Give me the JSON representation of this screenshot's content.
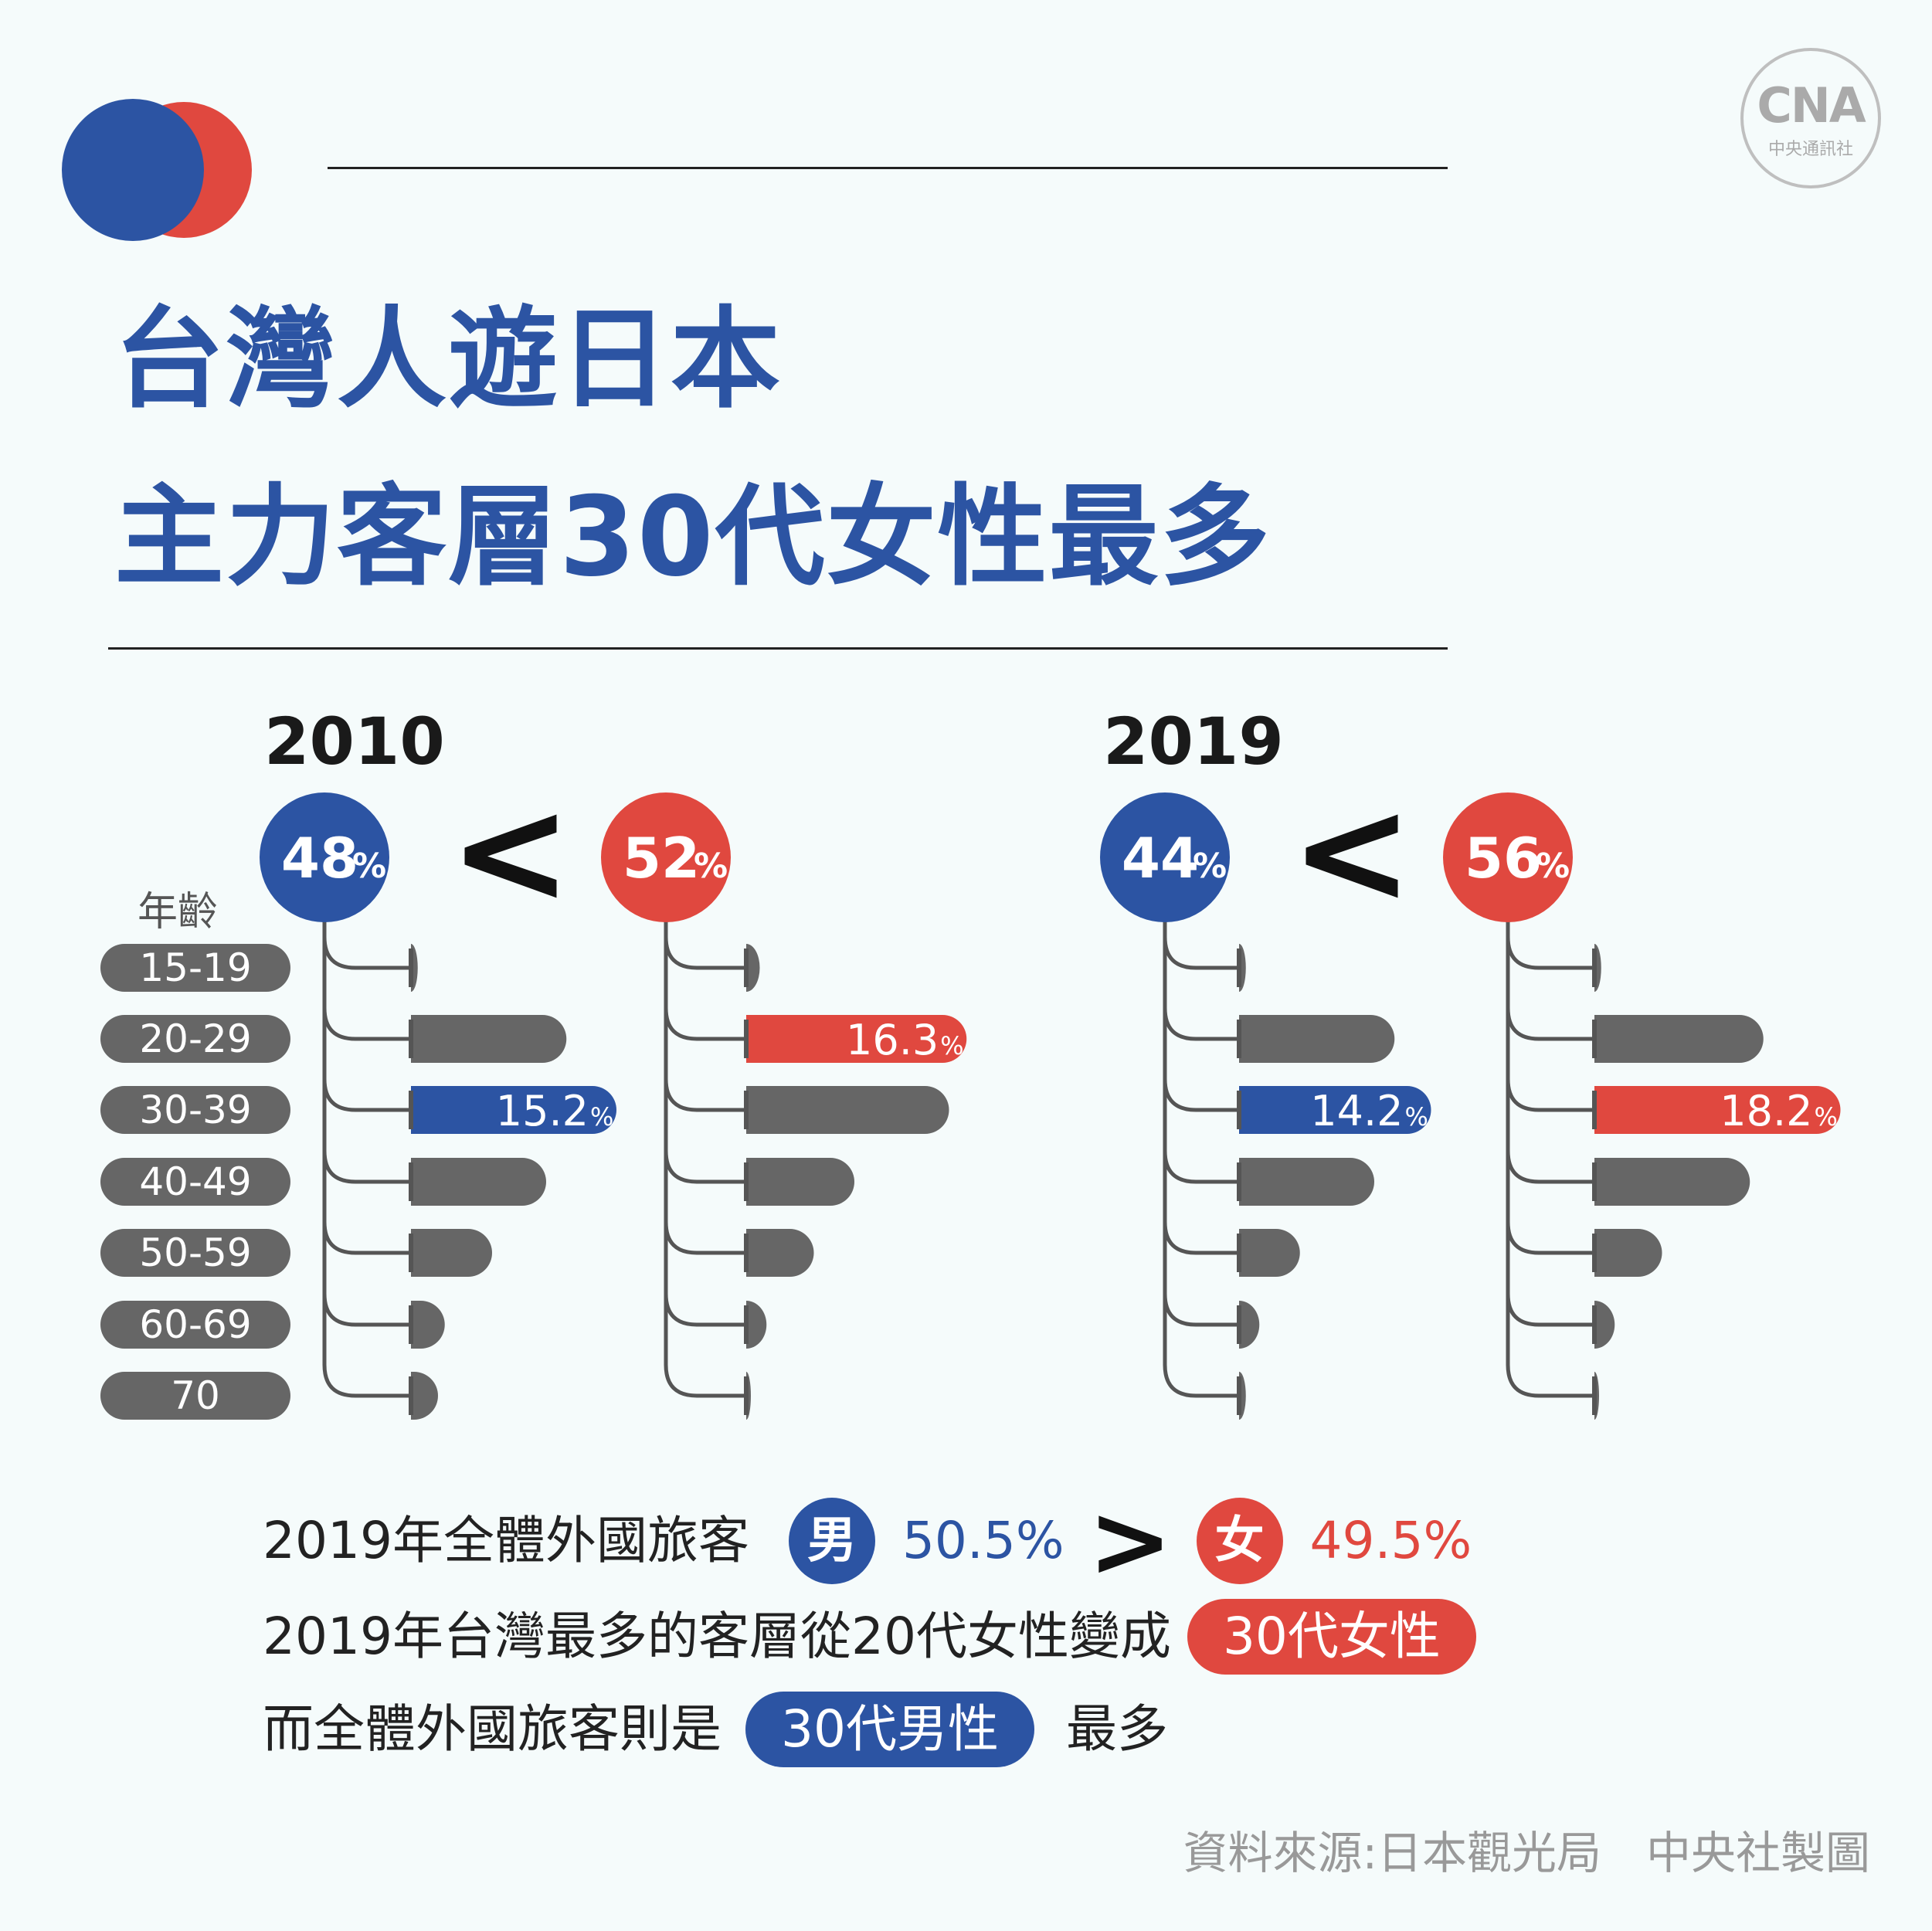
{
  "logo": {
    "text": "CNA",
    "sub": "中央通訊社"
  },
  "title": {
    "line1": "台灣人遊日本",
    "line2": "主力客層30代女性最多"
  },
  "age_header": "年齡",
  "age_groups": [
    "15-19",
    "20-29",
    "30-39",
    "40-49",
    "50-59",
    "60-69",
    "70"
  ],
  "comparison_sign": "<",
  "colors": {
    "blue": "#2c54a3",
    "red": "#e0483f",
    "gray": "#666666"
  },
  "chart_data": {
    "type": "bar",
    "categories": [
      "15-19",
      "20-29",
      "30-39",
      "40-49",
      "50-59",
      "60-69",
      "70"
    ],
    "panels": [
      {
        "year": "2010",
        "groups": [
          {
            "name": "48%",
            "share": 48,
            "color": "blue",
            "values": [
              0.5,
              11.5,
              15.2,
              10.0,
              6.0,
              2.5,
              2.0
            ],
            "highlight_index": 2,
            "highlight_label": "15.2%"
          },
          {
            "name": "52%",
            "share": 52,
            "color": "red",
            "values": [
              1.0,
              16.3,
              15.0,
              8.0,
              5.0,
              1.5,
              0.3
            ],
            "highlight_index": 1,
            "highlight_label": "16.3%"
          }
        ]
      },
      {
        "year": "2019",
        "groups": [
          {
            "name": "44%",
            "share": 44,
            "color": "blue",
            "values": [
              0.5,
              11.5,
              14.2,
              10.0,
              4.5,
              1.5,
              0.5
            ],
            "highlight_index": 2,
            "highlight_label": "14.2%"
          },
          {
            "name": "56%",
            "share": 56,
            "color": "red",
            "values": [
              0.5,
              12.5,
              18.2,
              11.5,
              5.0,
              1.5,
              0.3
            ],
            "highlight_index": 2,
            "highlight_label": "18.2%"
          }
        ]
      }
    ]
  },
  "summary": {
    "line1_text": "2019年全體外國旅客",
    "male_char": "男",
    "male_pct": "50.5%",
    "gt": ">",
    "female_char": "女",
    "female_pct": "49.5%",
    "line2_text": "2019年台灣最多的客層從20代女性變成",
    "line2_pill": "30代女性",
    "line3_text": "而全體外國旅客則是",
    "line3_pill": "30代男性",
    "line3_tail": "最多"
  },
  "source": "資料來源:日本觀光局　中央社製圖"
}
